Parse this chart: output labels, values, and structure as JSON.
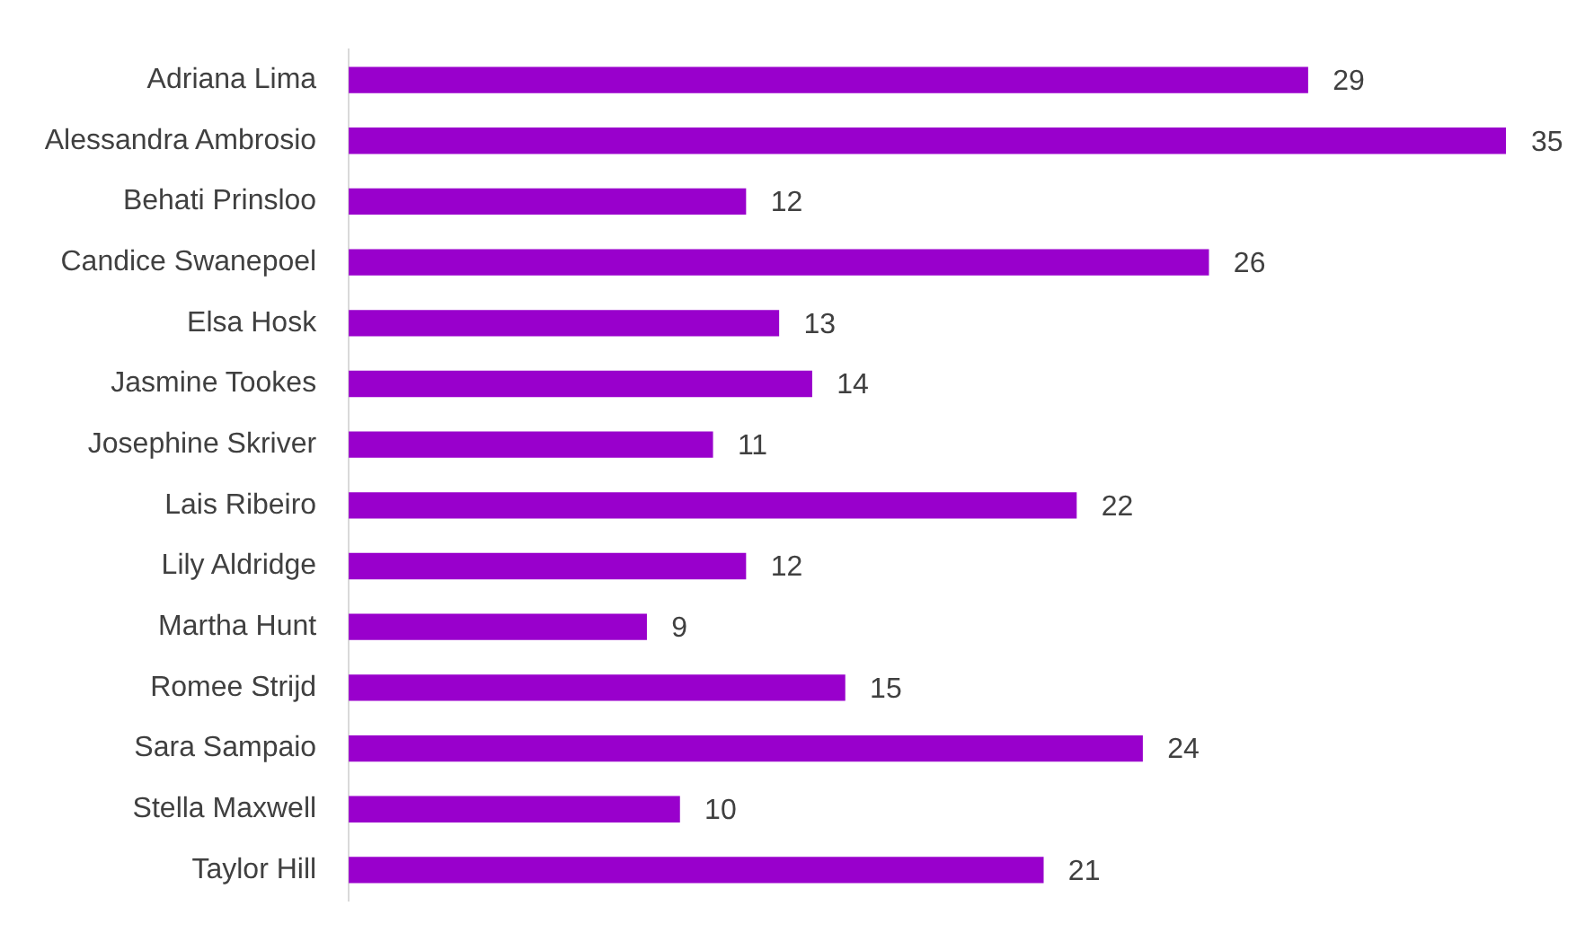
{
  "chart_data": {
    "type": "bar",
    "orientation": "horizontal",
    "categories": [
      "Adriana Lima",
      "Alessandra Ambrosio",
      "Behati Prinsloo",
      "Candice Swanepoel",
      "Elsa Hosk",
      "Jasmine Tookes",
      "Josephine Skriver",
      "Lais Ribeiro",
      "Lily Aldridge",
      "Martha Hunt",
      "Romee Strijd",
      "Sara Sampaio",
      "Stella Maxwell",
      "Taylor Hill"
    ],
    "values": [
      29,
      35,
      12,
      26,
      13,
      14,
      11,
      22,
      12,
      9,
      15,
      24,
      10,
      21
    ],
    "color": "#9900cc",
    "data_labels": true,
    "legend": false
  }
}
